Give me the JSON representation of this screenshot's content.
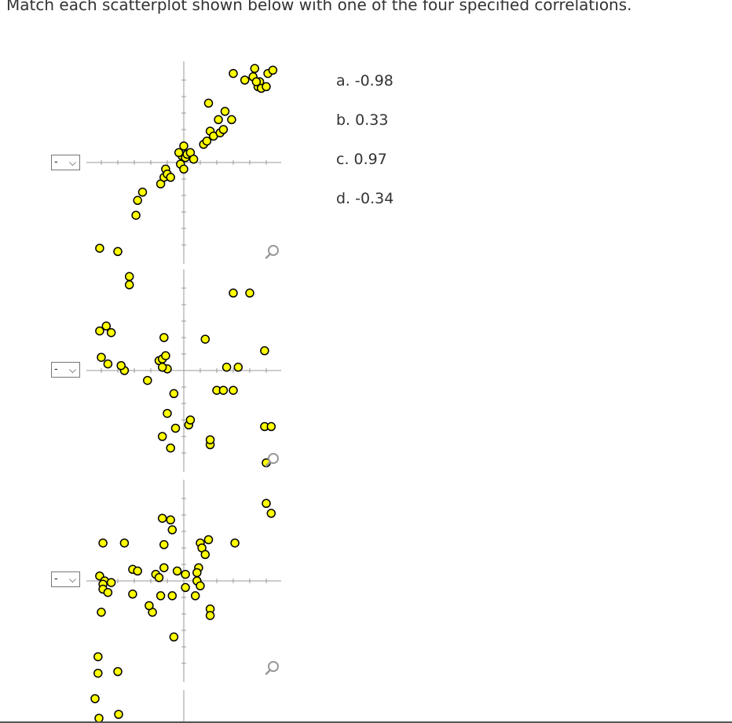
{
  "prompt": "Match each scatterplot shown below with one of the four specified correlations.",
  "select_placeholder": "-",
  "options": [
    "a. -0.98",
    "b. 0.33",
    "c. 0.97",
    "d. -0.34"
  ],
  "icons": {
    "zoom": "zoom-icon",
    "dropdown": "chevron-down-icon"
  },
  "colors": {
    "point_fill": "#ffff00",
    "point_stroke": "#000000",
    "axis": "#999999"
  },
  "chart_data": [
    {
      "type": "scatter",
      "title": "",
      "xlabel": "",
      "ylabel": "",
      "xlim": [
        -6,
        6
      ],
      "ylim": [
        -6,
        6
      ],
      "grid": false,
      "points": [
        [
          -5.1,
          -5.2
        ],
        [
          -4.0,
          -5.4
        ],
        [
          -2.9,
          -3.2
        ],
        [
          -2.8,
          -2.3
        ],
        [
          -2.5,
          -1.8
        ],
        [
          -1.4,
          -1.3
        ],
        [
          -1.2,
          -0.9
        ],
        [
          -1.1,
          -0.4
        ],
        [
          -1.0,
          -0.7
        ],
        [
          -0.8,
          -0.9
        ],
        [
          -0.2,
          -0.1
        ],
        [
          -0.1,
          0.4
        ],
        [
          0.1,
          0.3
        ],
        [
          0.2,
          0.5
        ],
        [
          0.4,
          0.6
        ],
        [
          0.6,
          0.2
        ],
        [
          0.0,
          -0.4
        ],
        [
          -0.3,
          0.6
        ],
        [
          0.0,
          1.0
        ],
        [
          1.2,
          1.1
        ],
        [
          1.4,
          1.3
        ],
        [
          1.6,
          1.9
        ],
        [
          1.8,
          1.6
        ],
        [
          2.2,
          1.8
        ],
        [
          2.4,
          2.0
        ],
        [
          2.1,
          2.6
        ],
        [
          2.5,
          3.1
        ],
        [
          2.9,
          2.6
        ],
        [
          1.5,
          3.6
        ],
        [
          3.0,
          5.4
        ],
        [
          3.7,
          5.0
        ],
        [
          4.2,
          5.2
        ],
        [
          4.3,
          5.7
        ],
        [
          4.5,
          4.6
        ],
        [
          4.6,
          4.9
        ],
        [
          4.7,
          4.5
        ],
        [
          5.0,
          4.6
        ],
        [
          5.1,
          5.4
        ],
        [
          5.4,
          5.6
        ],
        [
          4.4,
          4.9
        ]
      ]
    },
    {
      "type": "scatter",
      "title": "",
      "xlabel": "",
      "ylabel": "",
      "xlim": [
        -6,
        6
      ],
      "ylim": [
        -6,
        6
      ],
      "grid": false,
      "points": [
        [
          -3.3,
          5.2
        ],
        [
          -3.3,
          5.7
        ],
        [
          3.0,
          4.7
        ],
        [
          4.0,
          4.7
        ],
        [
          -5.1,
          2.4
        ],
        [
          -4.4,
          2.3
        ],
        [
          -4.7,
          2.7
        ],
        [
          -1.2,
          2.0
        ],
        [
          1.3,
          1.9
        ],
        [
          4.9,
          1.2
        ],
        [
          -5.0,
          0.8
        ],
        [
          -4.6,
          0.4
        ],
        [
          -1.5,
          0.6
        ],
        [
          -1.3,
          0.7
        ],
        [
          -1.1,
          0.9
        ],
        [
          -1.0,
          0.1
        ],
        [
          -1.3,
          0.2
        ],
        [
          -3.6,
          0.0
        ],
        [
          -3.8,
          0.3
        ],
        [
          -2.2,
          -0.6
        ],
        [
          2.6,
          0.2
        ],
        [
          3.3,
          0.2
        ],
        [
          -0.6,
          -1.4
        ],
        [
          2.0,
          -1.2
        ],
        [
          2.4,
          -1.2
        ],
        [
          3.0,
          -1.2
        ],
        [
          -1.0,
          -2.6
        ],
        [
          -0.5,
          -3.5
        ],
        [
          -1.3,
          -4.0
        ],
        [
          -0.8,
          -4.7
        ],
        [
          0.3,
          -3.3
        ],
        [
          0.4,
          -3.0
        ],
        [
          1.6,
          -4.5
        ],
        [
          1.6,
          -4.2
        ],
        [
          4.9,
          -3.4
        ],
        [
          5.3,
          -3.4
        ],
        [
          5.0,
          -5.6
        ]
      ]
    },
    {
      "type": "scatter",
      "title": "",
      "xlabel": "",
      "ylabel": "",
      "xlim": [
        -6,
        6
      ],
      "ylim": [
        -6,
        6
      ],
      "grid": false,
      "points": [
        [
          5.0,
          4.7
        ],
        [
          5.3,
          4.1
        ],
        [
          -1.3,
          3.8
        ],
        [
          -0.8,
          3.7
        ],
        [
          -0.7,
          3.1
        ],
        [
          -4.9,
          2.3
        ],
        [
          -3.6,
          2.3
        ],
        [
          -1.2,
          2.2
        ],
        [
          1.5,
          2.5
        ],
        [
          1.0,
          2.3
        ],
        [
          3.1,
          2.3
        ],
        [
          1.1,
          2.0
        ],
        [
          1.3,
          1.6
        ],
        [
          -3.1,
          0.7
        ],
        [
          -2.8,
          0.6
        ],
        [
          -1.2,
          0.8
        ],
        [
          -0.4,
          0.6
        ],
        [
          0.9,
          0.8
        ],
        [
          0.8,
          0.5
        ],
        [
          -5.1,
          0.3
        ],
        [
          -4.8,
          0.0
        ],
        [
          -4.9,
          -0.2
        ],
        [
          -4.4,
          -0.1
        ],
        [
          -1.7,
          0.4
        ],
        [
          -1.5,
          0.2
        ],
        [
          0.1,
          0.4
        ],
        [
          0.8,
          0.0
        ],
        [
          0.1,
          -0.4
        ],
        [
          1.0,
          -0.3
        ],
        [
          -4.9,
          -0.5
        ],
        [
          -4.6,
          -0.7
        ],
        [
          -3.1,
          -0.8
        ],
        [
          -1.4,
          -0.9
        ],
        [
          -0.7,
          -0.9
        ],
        [
          0.7,
          -0.9
        ],
        [
          -5.0,
          -1.9
        ],
        [
          -1.9,
          -1.9
        ],
        [
          -2.1,
          -1.5
        ],
        [
          1.6,
          -1.7
        ],
        [
          1.6,
          -2.1
        ],
        [
          -0.6,
          -3.4
        ],
        [
          -5.2,
          -4.6
        ],
        [
          -4.0,
          -5.5
        ],
        [
          -5.2,
          -5.6
        ]
      ]
    }
  ]
}
